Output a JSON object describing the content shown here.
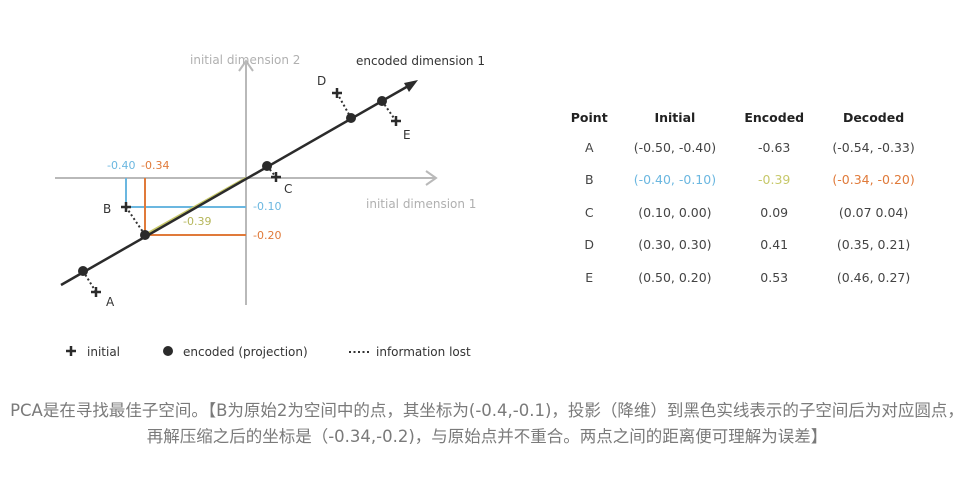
{
  "colors": {
    "blue": "#6bb7e0",
    "orange": "#e07a3a",
    "olive": "#c7c86a",
    "axis": "#b9b9b9",
    "line": "#2b2b2b"
  },
  "diagram": {
    "axis_x_label": "initial dimension 1",
    "axis_y_label": "initial dimension 2",
    "encoded_label": "encoded dimension 1",
    "guide_labels": {
      "bx": "-0.40",
      "ox": "-0.34",
      "by": "-0.10",
      "oy": "-0.20",
      "proj": "-0.39"
    },
    "point_labels": {
      "a": "A",
      "b": "B",
      "c": "C",
      "d": "D",
      "e": "E"
    },
    "legend": {
      "initial": "initial",
      "encoded": "encoded (projection)",
      "lost": "information lost"
    }
  },
  "table": {
    "headers": [
      "Point",
      "Initial",
      "Encoded",
      "Decoded"
    ],
    "rows": [
      [
        "A",
        "(-0.50, -0.40)",
        "-0.63",
        "(-0.54, -0.33)"
      ],
      [
        "B",
        "(-0.40, -0.10)",
        "-0.39",
        "(-0.34, -0.20)"
      ],
      [
        "C",
        "(0.10, 0.00)",
        "0.09",
        "(0.07 0.04)"
      ],
      [
        "D",
        "(0.30, 0.30)",
        "0.41",
        "(0.35, 0.21)"
      ],
      [
        "E",
        "(0.50, 0.20)",
        "0.53",
        "(0.46, 0.27)"
      ]
    ]
  },
  "caption": "PCA是在寻找最佳子空间。【B为原始2为空间中的点，其坐标为(-0.4,-0.1)，投影（降维）到黑色实线表示的子空间后为对应圆点，再解压缩之后的坐标是（-0.34,-0.2)，与原始点并不重合。两点之间的距离便可理解为误差】"
}
